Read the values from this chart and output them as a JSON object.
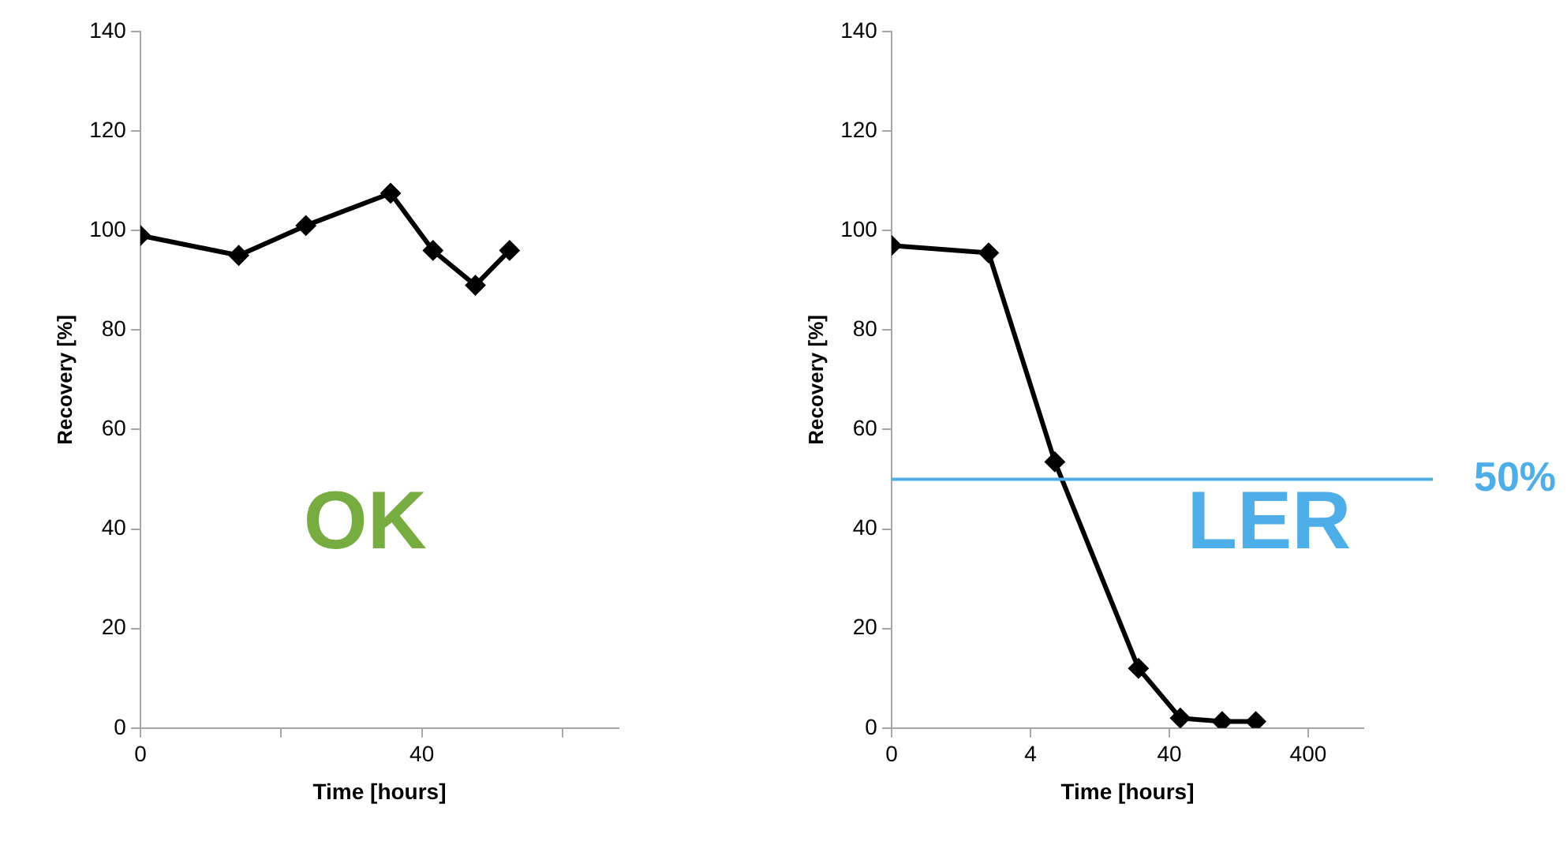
{
  "chart_data": [
    {
      "type": "line",
      "xlabel": "Time [hours]",
      "ylabel": "Recovery [%]",
      "log": "x",
      "x": [
        0.4,
        2,
        6,
        24,
        48,
        96,
        168
      ],
      "series": [
        {
          "color": "#000000",
          "values": [
            99,
            95,
            101,
            107.5,
            96,
            89,
            96
          ]
        }
      ],
      "xlim": [
        0.4,
        1000
      ],
      "xticks": [
        {
          "value": 0.4,
          "label": "0"
        },
        {
          "value": 4,
          "label": null
        },
        40,
        {
          "value": 400,
          "label": null
        }
      ],
      "ylim": [
        0,
        140
      ],
      "yticks": [
        0,
        20,
        40,
        60,
        80,
        100,
        120,
        140
      ],
      "marker": "diamond",
      "legend": false,
      "annotations": [
        "OK"
      ]
    },
    {
      "type": "line",
      "xlabel": "Time [hours]",
      "ylabel": "Recovery [%]",
      "log": "x",
      "x": [
        0.4,
        2,
        6,
        24,
        48,
        96,
        168
      ],
      "series": [
        {
          "color": "#000000",
          "values": [
            97,
            95.5,
            53.5,
            12,
            2,
            1.3,
            1.3
          ]
        }
      ],
      "xlim": [
        0.4,
        1000
      ],
      "xticks": [
        {
          "value": 0.4,
          "label": "0"
        },
        4,
        40,
        400
      ],
      "ylim": [
        0,
        140
      ],
      "yticks": [
        0,
        20,
        40,
        60,
        80,
        100,
        120,
        140
      ],
      "marker": "diamond",
      "legend": false,
      "ref_lines": [
        {
          "axis": "y",
          "value": 50,
          "label": "50%",
          "color": "#4eaee8"
        }
      ],
      "annotations": [
        "LER"
      ]
    }
  ]
}
